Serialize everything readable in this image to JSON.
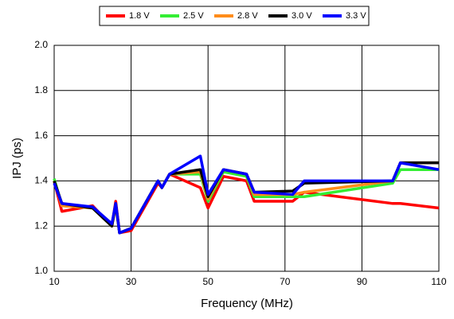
{
  "chart_data": {
    "type": "line",
    "x_label": "Frequency (MHz)",
    "y_label": "IPJ (ps)",
    "x": [
      10,
      12,
      20,
      25,
      26,
      27,
      30,
      37,
      38,
      40,
      48,
      50,
      54,
      60,
      62,
      72,
      75,
      98,
      100,
      110
    ],
    "series": [
      {
        "name": "1.8 V",
        "color": "#ff0000",
        "values": [
          1.4,
          1.265,
          1.29,
          1.2,
          1.31,
          1.17,
          1.18,
          1.39,
          1.37,
          1.43,
          1.37,
          1.28,
          1.42,
          1.4,
          1.31,
          1.31,
          1.35,
          1.3,
          1.3,
          1.28
        ]
      },
      {
        "name": "2.5 V",
        "color": "#33ee33",
        "values": [
          1.41,
          1.29,
          1.28,
          1.2,
          1.29,
          1.17,
          1.19,
          1.4,
          1.37,
          1.43,
          1.43,
          1.31,
          1.44,
          1.42,
          1.33,
          1.33,
          1.33,
          1.39,
          1.45,
          1.45
        ]
      },
      {
        "name": "2.8 V",
        "color": "#ff8c1a",
        "values": [
          1.4,
          1.29,
          1.28,
          1.2,
          1.29,
          1.17,
          1.19,
          1.4,
          1.37,
          1.43,
          1.44,
          1.32,
          1.45,
          1.43,
          1.34,
          1.34,
          1.35,
          1.4,
          1.48,
          1.48
        ]
      },
      {
        "name": "3.0 V",
        "color": "#000000",
        "values": [
          1.4,
          1.3,
          1.28,
          1.2,
          1.3,
          1.17,
          1.19,
          1.4,
          1.37,
          1.43,
          1.45,
          1.33,
          1.45,
          1.43,
          1.35,
          1.355,
          1.39,
          1.4,
          1.48,
          1.48
        ]
      },
      {
        "name": "3.3 V",
        "color": "#0000ff",
        "values": [
          1.39,
          1.3,
          1.285,
          1.21,
          1.3,
          1.17,
          1.19,
          1.4,
          1.37,
          1.43,
          1.51,
          1.34,
          1.45,
          1.43,
          1.35,
          1.34,
          1.4,
          1.4,
          1.48,
          1.45
        ]
      }
    ],
    "xlim": [
      10,
      110
    ],
    "xticks": [
      10,
      30,
      50,
      70,
      90,
      110
    ],
    "ylim": [
      1.0,
      2.0
    ],
    "yticks": [
      {
        "value": 1.0,
        "label": "1.0"
      },
      {
        "value": 1.2,
        "label": "1.2"
      },
      {
        "value": 1.4,
        "label": "1.4"
      },
      {
        "value": 1.6,
        "label": "1.6"
      },
      {
        "value": 1.8,
        "label": "1.8"
      },
      {
        "value": 2.0,
        "label": "2.0"
      }
    ],
    "grid": true,
    "legend": "top"
  }
}
